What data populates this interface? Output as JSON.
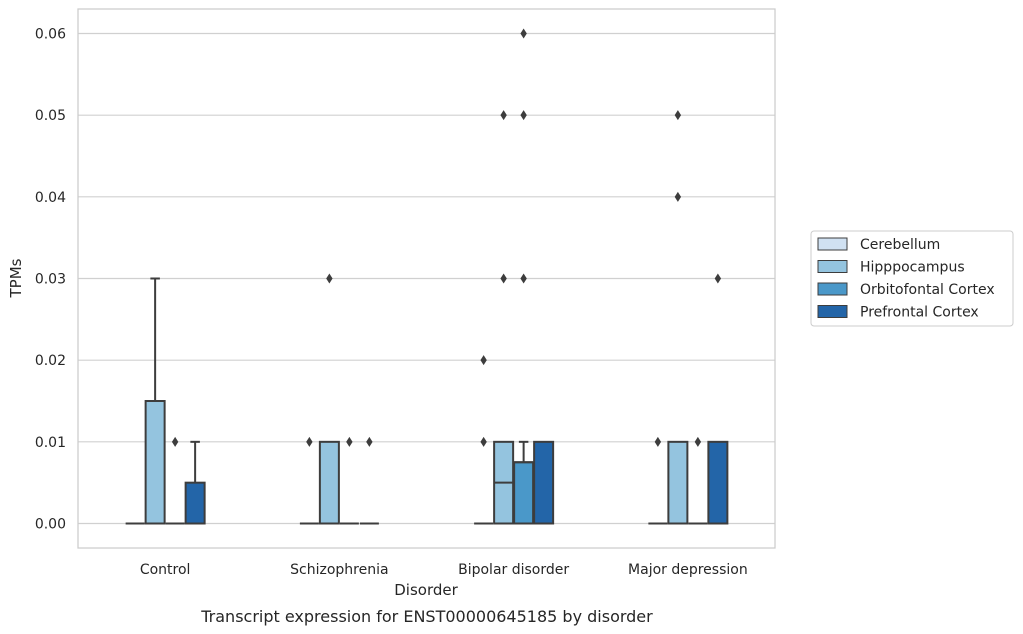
{
  "chart_data": {
    "type": "box",
    "title": "",
    "caption": "Transcript expression for ENST00000645185 by disorder",
    "xlabel": "Disorder",
    "ylabel": "TPMs",
    "ylim": [
      -0.003,
      0.063
    ],
    "yticks": [
      0.0,
      0.01,
      0.02,
      0.03,
      0.04,
      0.05,
      0.06
    ],
    "ytick_labels": [
      "0.00",
      "0.01",
      "0.02",
      "0.03",
      "0.04",
      "0.05",
      "0.06"
    ],
    "grid": "horizontal",
    "legend_position": "right",
    "categories": [
      "Control",
      "Schizophrenia",
      "Bipolar disorder",
      "Major depression"
    ],
    "series": [
      {
        "name": "Cerebellum",
        "color": "#d0e1f2",
        "boxes": [
          {
            "q1": 0,
            "median": 0,
            "q3": 0,
            "whisker_low": 0,
            "whisker_high": 0,
            "outliers": []
          },
          {
            "q1": 0,
            "median": 0,
            "q3": 0,
            "whisker_low": 0,
            "whisker_high": 0,
            "outliers": [
              0.01
            ]
          },
          {
            "q1": 0,
            "median": 0,
            "q3": 0,
            "whisker_low": 0,
            "whisker_high": 0,
            "outliers": [
              0.01,
              0.02
            ]
          },
          {
            "q1": 0,
            "median": 0,
            "q3": 0,
            "whisker_low": 0,
            "whisker_high": 0,
            "outliers": [
              0.01
            ]
          }
        ]
      },
      {
        "name": "Hipppocampus",
        "color": "#94c4df",
        "boxes": [
          {
            "q1": 0,
            "median": 0,
            "q3": 0.015,
            "whisker_low": 0,
            "whisker_high": 0.03,
            "outliers": []
          },
          {
            "q1": 0,
            "median": 0,
            "q3": 0.01,
            "whisker_low": 0,
            "whisker_high": 0.01,
            "outliers": [
              0.03
            ]
          },
          {
            "q1": 0,
            "median": 0.005,
            "q3": 0.01,
            "whisker_low": 0,
            "whisker_high": 0.01,
            "outliers": [
              0.03,
              0.05
            ]
          },
          {
            "q1": 0,
            "median": 0,
            "q3": 0.01,
            "whisker_low": 0,
            "whisker_high": 0.01,
            "outliers": [
              0.04,
              0.05
            ]
          }
        ]
      },
      {
        "name": "Orbitofontal Cortex",
        "color": "#4a98c9",
        "boxes": [
          {
            "q1": 0,
            "median": 0,
            "q3": 0,
            "whisker_low": 0,
            "whisker_high": 0,
            "outliers": [
              0.01
            ]
          },
          {
            "q1": 0,
            "median": 0,
            "q3": 0,
            "whisker_low": 0,
            "whisker_high": 0,
            "outliers": [
              0.01
            ]
          },
          {
            "q1": 0,
            "median": 0.0075,
            "q3": 0.0075,
            "whisker_low": 0,
            "whisker_high": 0.01,
            "outliers": [
              0.03,
              0.05,
              0.06
            ]
          },
          {
            "q1": 0,
            "median": 0,
            "q3": 0,
            "whisker_low": 0,
            "whisker_high": 0,
            "outliers": [
              0.01
            ]
          }
        ]
      },
      {
        "name": "Prefrontal Cortex",
        "color": "#2365a8",
        "boxes": [
          {
            "q1": 0,
            "median": 0,
            "q3": 0.005,
            "whisker_low": 0,
            "whisker_high": 0.01,
            "outliers": []
          },
          {
            "q1": 0,
            "median": 0,
            "q3": 0,
            "whisker_low": 0,
            "whisker_high": 0,
            "outliers": [
              0.01
            ]
          },
          {
            "q1": 0,
            "median": 0,
            "q3": 0.01,
            "whisker_low": 0,
            "whisker_high": 0.01,
            "outliers": []
          },
          {
            "q1": 0,
            "median": 0,
            "q3": 0.01,
            "whisker_low": 0,
            "whisker_high": 0.01,
            "outliers": [
              0.03
            ]
          }
        ]
      }
    ]
  }
}
